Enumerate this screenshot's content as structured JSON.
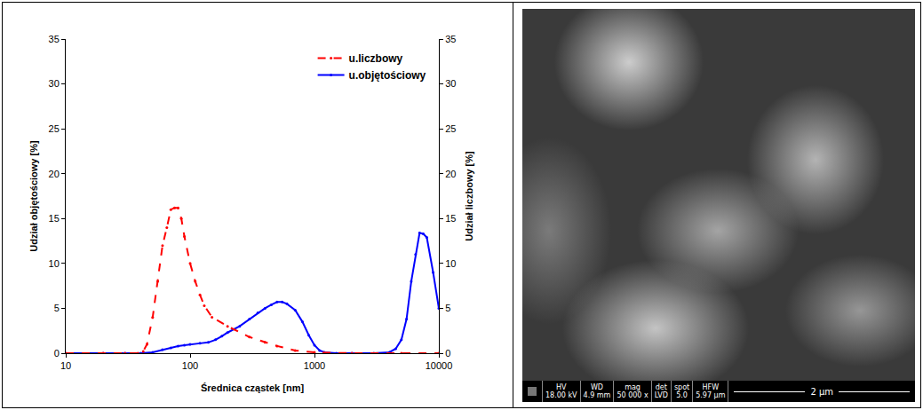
{
  "chart_data": {
    "type": "line",
    "xlabel": "Średnica cząstek [nm]",
    "ylabel": "Udział objętościowy [%]",
    "y2label": "Udział liczbowy [%]",
    "log": "x",
    "grid": false,
    "legend": "top-right",
    "xlim": [
      10,
      10000
    ],
    "xticks": [
      10,
      100,
      1000,
      10000
    ],
    "ylim": [
      0,
      35
    ],
    "yticks": [
      0,
      5,
      10,
      15,
      20,
      25,
      30,
      35
    ],
    "y2lim": [
      0,
      35
    ],
    "y2ticks": [
      0,
      5,
      10,
      15,
      20,
      25,
      30,
      35
    ],
    "series": [
      {
        "name": "u.liczbowy",
        "color": "#ff0000",
        "line_style": "dash",
        "marker": "circle",
        "axis": "y2",
        "x": [
          10,
          20,
          30,
          38,
          42,
          45,
          50,
          55,
          60,
          65,
          70,
          75,
          80,
          85,
          90,
          100,
          110,
          120,
          130,
          150,
          200,
          300,
          400,
          500,
          700,
          1000,
          2000,
          5000,
          10000
        ],
        "values": [
          0,
          0,
          0,
          0,
          0.2,
          1,
          4,
          8,
          12,
          14,
          16,
          16.2,
          16.2,
          15,
          13,
          10,
          8,
          6.5,
          5.3,
          4,
          3,
          1.8,
          1.2,
          0.8,
          0.3,
          0.1,
          0,
          0,
          0
        ]
      },
      {
        "name": "u.objętościowy",
        "color": "#0000ff",
        "line_style": "solid",
        "marker": "circle",
        "x": [
          10,
          20,
          30,
          40,
          50,
          60,
          70,
          80,
          90,
          100,
          120,
          140,
          160,
          180,
          200,
          250,
          300,
          350,
          400,
          450,
          500,
          550,
          600,
          700,
          800,
          900,
          1000,
          1100,
          1200,
          1500,
          2000,
          3000,
          4000,
          4500,
          5000,
          5500,
          6000,
          6500,
          7000,
          7500,
          8000,
          9000,
          10000
        ],
        "values": [
          0,
          0,
          0,
          0,
          0.1,
          0.4,
          0.6,
          0.8,
          0.9,
          1,
          1.1,
          1.2,
          1.5,
          1.9,
          2.3,
          3,
          3.8,
          4.5,
          5,
          5.4,
          5.7,
          5.7,
          5.5,
          4.8,
          3.5,
          2,
          0.9,
          0.3,
          0.1,
          0,
          0,
          0,
          0.1,
          0.5,
          1.5,
          3.8,
          8,
          11,
          13.4,
          13.3,
          12.9,
          9,
          5
        ]
      }
    ]
  },
  "image_panel": {
    "info_bar": [
      {
        "label": "HV",
        "value": "18.00 kV"
      },
      {
        "label": "WD",
        "value": "4.9 mm"
      },
      {
        "label": "mag",
        "value": "50 000 x"
      },
      {
        "label": "det",
        "value": "LVD"
      },
      {
        "label": "spot",
        "value": "5.0"
      },
      {
        "label": "HFW",
        "value": "5.97 µm"
      }
    ],
    "scale_bar": "2 µm"
  }
}
